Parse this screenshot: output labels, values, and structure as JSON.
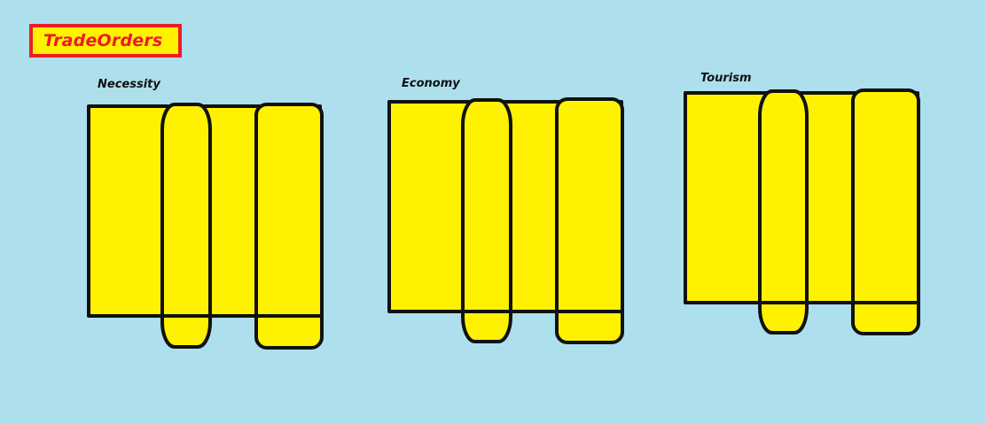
{
  "header": {
    "title": "TradeOrders"
  },
  "groups": [
    {
      "label": "Necessity"
    },
    {
      "label": "Economy"
    },
    {
      "label": "Tourism"
    }
  ],
  "colors": {
    "background": "#ade0ec",
    "panel_fill": "#fff200",
    "outline": "#111111",
    "badge_border": "#ed1c24",
    "badge_text": "#ed1c24"
  }
}
